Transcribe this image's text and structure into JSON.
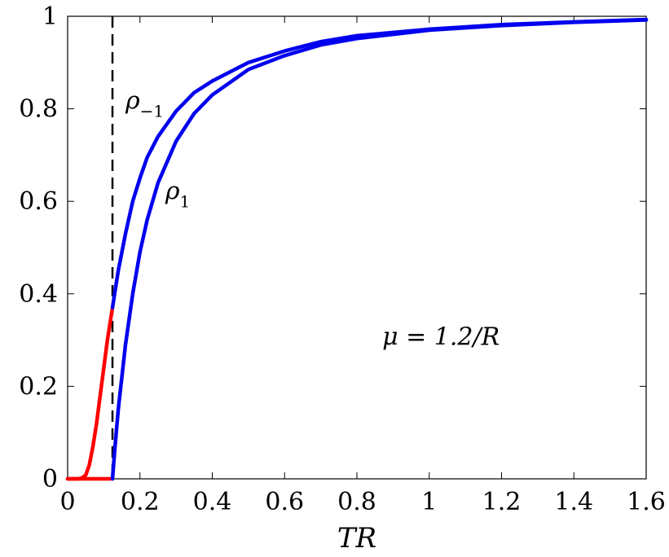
{
  "chart_data": {
    "type": "line",
    "xlabel": "TR",
    "ylabel": "",
    "xlim": [
      0,
      1.6
    ],
    "ylim": [
      0,
      1
    ],
    "xticks": [
      "0",
      "0.2",
      "0.4",
      "0.6",
      "0.8",
      "1",
      "1.2",
      "1.4",
      "1.6"
    ],
    "xtick_values": [
      0,
      0.2,
      0.4,
      0.6,
      0.8,
      1.0,
      1.2,
      1.4,
      1.6
    ],
    "yticks": [
      "0",
      "0.2",
      "0.4",
      "0.6",
      "0.8",
      "1"
    ],
    "ytick_values": [
      0,
      0.2,
      0.4,
      0.6,
      0.8,
      1.0
    ],
    "grid": false,
    "colors": {
      "red": "#ff0000",
      "blue": "#0000ee",
      "dashed": "#000000"
    },
    "vline": {
      "x": 0.124,
      "style": "dashed"
    },
    "series": [
      {
        "color": "#ff0000",
        "x": [
          0,
          0.03,
          0.04,
          0.05,
          0.06,
          0.07,
          0.08,
          0.09,
          0.1,
          0.11,
          0.12,
          0.124
        ],
        "y": [
          0,
          0,
          0.002,
          0.008,
          0.03,
          0.07,
          0.12,
          0.18,
          0.24,
          0.3,
          0.35,
          0.37
        ]
      },
      {
        "color": "#ff0000",
        "x": [
          0,
          0.124
        ],
        "y": [
          0,
          0
        ]
      },
      {
        "name": "ρ-1",
        "color": "#0000ee",
        "x": [
          0.124,
          0.13,
          0.14,
          0.16,
          0.18,
          0.2,
          0.22,
          0.25,
          0.3,
          0.35,
          0.4,
          0.5,
          0.6,
          0.7,
          0.8,
          1.0,
          1.2,
          1.4,
          1.6
        ],
        "y": [
          0.37,
          0.4,
          0.45,
          0.53,
          0.6,
          0.65,
          0.695,
          0.74,
          0.795,
          0.835,
          0.86,
          0.9,
          0.925,
          0.945,
          0.958,
          0.972,
          0.982,
          0.988,
          0.993
        ]
      },
      {
        "name": "ρ1",
        "color": "#0000ee",
        "x": [
          0.124,
          0.13,
          0.14,
          0.16,
          0.18,
          0.2,
          0.22,
          0.25,
          0.3,
          0.35,
          0.4,
          0.5,
          0.6,
          0.7,
          0.8,
          1.0,
          1.2,
          1.4,
          1.6
        ],
        "y": [
          0.0,
          0.06,
          0.15,
          0.29,
          0.4,
          0.49,
          0.56,
          0.64,
          0.73,
          0.79,
          0.83,
          0.885,
          0.915,
          0.938,
          0.952,
          0.97,
          0.98,
          0.987,
          0.992
        ]
      }
    ],
    "annotations": [
      {
        "main": "ρ",
        "sub": "−1",
        "x": 0.16,
        "y": 0.8
      },
      {
        "main": "ρ",
        "sub": "1",
        "x": 0.27,
        "y": 0.605
      },
      {
        "main": "μ = 1.2/R",
        "sub": "",
        "x": 0.87,
        "y": 0.29
      }
    ]
  }
}
